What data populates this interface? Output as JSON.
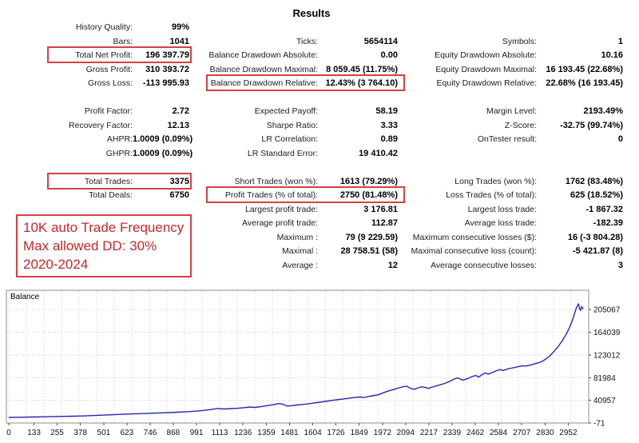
{
  "title": "Results",
  "colors": {
    "highlight_box": "#d84040",
    "annotation_text": "#c62828",
    "balance_line": "#2626b2"
  },
  "annotation": {
    "lines": [
      "10K auto Trade Frequency",
      "Max allowed DD: 30%",
      "2020-2024"
    ]
  },
  "stats": {
    "columns": [
      {
        "name": "left",
        "rows": [
          {
            "slot": 0,
            "label": "History Quality:",
            "value": "99%"
          },
          {
            "slot": 1,
            "label": "Bars:",
            "value": "1041"
          },
          {
            "slot": 2,
            "label": "Total Net Profit:",
            "value": "196 397.79",
            "boxed": true
          },
          {
            "slot": 3,
            "label": "Gross Profit:",
            "value": "310 393.72"
          },
          {
            "slot": 4,
            "label": "Gross Loss:",
            "value": "-113 995.93"
          },
          {
            "slot": 6,
            "label": "Profit Factor:",
            "value": "2.72"
          },
          {
            "slot": 7,
            "label": "Recovery Factor:",
            "value": "12.13"
          },
          {
            "slot": 8,
            "label": "AHPR:",
            "value": "1.0009 (0.09%)"
          },
          {
            "slot": 9,
            "label": "GHPR:",
            "value": "1.0009 (0.09%)"
          },
          {
            "slot": 11,
            "label": "Total Trades:",
            "value": "3375",
            "boxed": true
          },
          {
            "slot": 12,
            "label": "Total Deals:",
            "value": "6750"
          }
        ]
      },
      {
        "name": "middle",
        "rows": [
          {
            "slot": 1,
            "label": "Ticks:",
            "value": "5654114"
          },
          {
            "slot": 2,
            "label": "Balance Drawdown Absolute:",
            "value": "0.00"
          },
          {
            "slot": 3,
            "label": "Balance Drawdown Maximal:",
            "value": "8 059.45 (11.75%)"
          },
          {
            "slot": 4,
            "label": "Balance Drawdown Relative:",
            "value": "12.43% (3 764.10)",
            "boxed": true
          },
          {
            "slot": 6,
            "label": "Expected Payoff:",
            "value": "58.19"
          },
          {
            "slot": 7,
            "label": "Sharpe Ratio:",
            "value": "3.33"
          },
          {
            "slot": 8,
            "label": "LR Correlation:",
            "value": "0.89"
          },
          {
            "slot": 9,
            "label": "LR Standard Error:",
            "value": "19 410.42"
          },
          {
            "slot": 11,
            "label": "Short Trades (won %):",
            "value": "1613 (79.29%)"
          },
          {
            "slot": 12,
            "label": "Profit Trades (% of total):",
            "value": "2750 (81.48%)",
            "boxed": true
          },
          {
            "slot": 13,
            "label": "Largest profit trade:",
            "value": "3 176.81"
          },
          {
            "slot": 14,
            "label": "Average profit trade:",
            "value": "112.87"
          },
          {
            "slot": 15,
            "label": "Maximum :",
            "value": "79 (9 229.59)"
          },
          {
            "slot": 16,
            "label": "Maximal :",
            "value": "28 758.51 (58)"
          },
          {
            "slot": 17,
            "label": "Average :",
            "value": "12"
          }
        ]
      },
      {
        "name": "right",
        "rows": [
          {
            "slot": 1,
            "label": "Symbols:",
            "value": "1"
          },
          {
            "slot": 2,
            "label": "Equity Drawdown Absolute:",
            "value": "10.16"
          },
          {
            "slot": 3,
            "label": "Equity Drawdown Maximal:",
            "value": "16 193.45 (22.68%)"
          },
          {
            "slot": 4,
            "label": "Equity Drawdown Relative:",
            "value": "22.68% (16 193.45)"
          },
          {
            "slot": 6,
            "label": "Margin Level:",
            "value": "2193.49%"
          },
          {
            "slot": 7,
            "label": "Z-Score:",
            "value": "-32.75 (99.74%)"
          },
          {
            "slot": 8,
            "label": "OnTester result:",
            "value": "0"
          },
          {
            "slot": 11,
            "label": "Long Trades (won %):",
            "value": "1762 (83.48%)"
          },
          {
            "slot": 12,
            "label": "Loss Trades (% of total):",
            "value": "625 (18.52%)"
          },
          {
            "slot": 13,
            "label": "Largest loss trade:",
            "value": "-1 867.32"
          },
          {
            "slot": 14,
            "label": "Average loss trade:",
            "value": "-182.39"
          },
          {
            "slot": 15,
            "label": "Maximum consecutive losses ($):",
            "value": "16 (-3 804.28)"
          },
          {
            "slot": 16,
            "label": "Maximal consecutive loss (count):",
            "value": "-5 421.87 (8)"
          },
          {
            "slot": 17,
            "label": "Average consecutive losses:",
            "value": "3"
          }
        ]
      }
    ]
  },
  "chart_data": {
    "type": "line",
    "title": "Balance",
    "legend_position": "top-left-inside",
    "grid": "dashed",
    "xlim": [
      0,
      3060
    ],
    "ylim": [
      -71,
      240000
    ],
    "x_ticks": [
      0,
      133,
      255,
      378,
      501,
      623,
      746,
      868,
      991,
      1113,
      1236,
      1359,
      1481,
      1604,
      1726,
      1849,
      1972,
      2094,
      2217,
      2339,
      2462,
      2584,
      2707,
      2830,
      2952
    ],
    "y_ticks": [
      -71,
      40957,
      81984,
      123012,
      164039,
      205067
    ],
    "series": [
      {
        "name": "Balance",
        "points": [
          [
            0,
            10000
          ],
          [
            60,
            10350
          ],
          [
            120,
            10750
          ],
          [
            180,
            11100
          ],
          [
            240,
            11600
          ],
          [
            290,
            11900
          ],
          [
            340,
            12150
          ],
          [
            390,
            12700
          ],
          [
            440,
            13400
          ],
          [
            490,
            14100
          ],
          [
            540,
            14800
          ],
          [
            590,
            15500
          ],
          [
            640,
            16200
          ],
          [
            690,
            16900
          ],
          [
            740,
            17500
          ],
          [
            790,
            18100
          ],
          [
            840,
            18700
          ],
          [
            890,
            19400
          ],
          [
            940,
            20300
          ],
          [
            970,
            21000
          ],
          [
            1000,
            21700
          ],
          [
            1040,
            23200
          ],
          [
            1075,
            24800
          ],
          [
            1105,
            26200
          ],
          [
            1135,
            25300
          ],
          [
            1170,
            25900
          ],
          [
            1205,
            26600
          ],
          [
            1240,
            27600
          ],
          [
            1270,
            28800
          ],
          [
            1300,
            28200
          ],
          [
            1330,
            29500
          ],
          [
            1360,
            31200
          ],
          [
            1395,
            33000
          ],
          [
            1425,
            35000
          ],
          [
            1445,
            34000
          ],
          [
            1470,
            30500
          ],
          [
            1495,
            31500
          ],
          [
            1520,
            32500
          ],
          [
            1550,
            33500
          ],
          [
            1580,
            34500
          ],
          [
            1605,
            35800
          ],
          [
            1640,
            37500
          ],
          [
            1670,
            39000
          ],
          [
            1700,
            40500
          ],
          [
            1730,
            41800
          ],
          [
            1760,
            43200
          ],
          [
            1790,
            44500
          ],
          [
            1820,
            45800
          ],
          [
            1850,
            46900
          ],
          [
            1875,
            46000
          ],
          [
            1905,
            48400
          ],
          [
            1930,
            49800
          ],
          [
            1950,
            51000
          ],
          [
            1975,
            54500
          ],
          [
            2000,
            57500
          ],
          [
            2020,
            59500
          ],
          [
            2040,
            61500
          ],
          [
            2060,
            63500
          ],
          [
            2080,
            65500
          ],
          [
            2100,
            66500
          ],
          [
            2120,
            62500
          ],
          [
            2140,
            61000
          ],
          [
            2160,
            63500
          ],
          [
            2180,
            65500
          ],
          [
            2200,
            64000
          ],
          [
            2215,
            62500
          ],
          [
            2235,
            65000
          ],
          [
            2260,
            67500
          ],
          [
            2280,
            69500
          ],
          [
            2300,
            71500
          ],
          [
            2325,
            75000
          ],
          [
            2350,
            79500
          ],
          [
            2370,
            81500
          ],
          [
            2395,
            77500
          ],
          [
            2420,
            80000
          ],
          [
            2445,
            84000
          ],
          [
            2465,
            86000
          ],
          [
            2480,
            83000
          ],
          [
            2500,
            88000
          ],
          [
            2515,
            90500
          ],
          [
            2530,
            88500
          ],
          [
            2550,
            91000
          ],
          [
            2570,
            94000
          ],
          [
            2590,
            96500
          ],
          [
            2610,
            95000
          ],
          [
            2630,
            97500
          ],
          [
            2650,
            99000
          ],
          [
            2670,
            100500
          ],
          [
            2690,
            102000
          ],
          [
            2710,
            103500
          ],
          [
            2730,
            103000
          ],
          [
            2750,
            104500
          ],
          [
            2770,
            106500
          ],
          [
            2790,
            108500
          ],
          [
            2805,
            110000
          ],
          [
            2820,
            112500
          ],
          [
            2835,
            116000
          ],
          [
            2850,
            120000
          ],
          [
            2865,
            125000
          ],
          [
            2880,
            130500
          ],
          [
            2895,
            136500
          ],
          [
            2908,
            142500
          ],
          [
            2920,
            148500
          ],
          [
            2932,
            155000
          ],
          [
            2944,
            162000
          ],
          [
            2955,
            170000
          ],
          [
            2966,
            178500
          ],
          [
            2976,
            188000
          ],
          [
            2986,
            198000
          ],
          [
            2994,
            207000
          ],
          [
            3000,
            212000
          ],
          [
            3006,
            215400
          ],
          [
            3012,
            207000
          ],
          [
            3017,
            203500
          ],
          [
            3023,
            210500
          ],
          [
            3028,
            207500
          ],
          [
            3032,
            206400
          ]
        ]
      }
    ]
  }
}
